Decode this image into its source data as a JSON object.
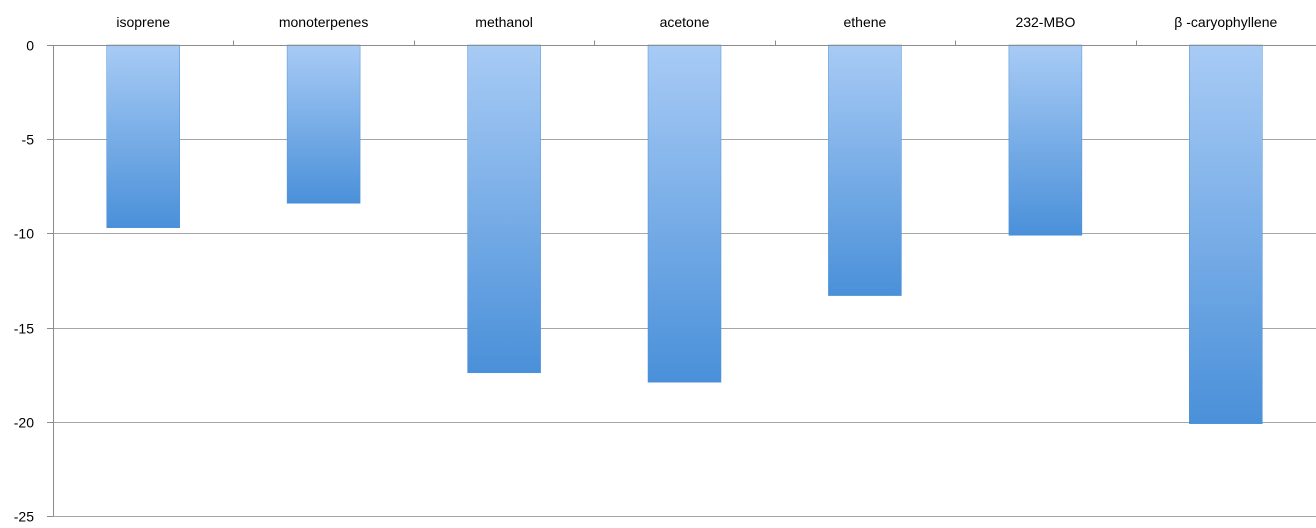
{
  "chart_data": {
    "type": "bar",
    "categories": [
      "isoprene",
      "monoterpenes",
      "methanol",
      "acetone",
      "ethene",
      "232-MBO",
      "β  -caryophyllene"
    ],
    "series": [
      {
        "values": [
          -9.7,
          -8.4,
          -17.4,
          -17.9,
          -13.3,
          -10.1,
          -20.1
        ]
      }
    ],
    "ylim": [
      -25,
      0
    ],
    "yticks": [
      0,
      -5,
      -10,
      -15,
      -20,
      -25
    ],
    "category_labels_position": "top",
    "grid": true,
    "legend": "none",
    "colors": {
      "bar_top": "#a8cbf5",
      "bar_bottom": "#4a90d9",
      "grid": "#a6a6a6",
      "axis": "#8c8c8c",
      "text": "#000000"
    }
  }
}
